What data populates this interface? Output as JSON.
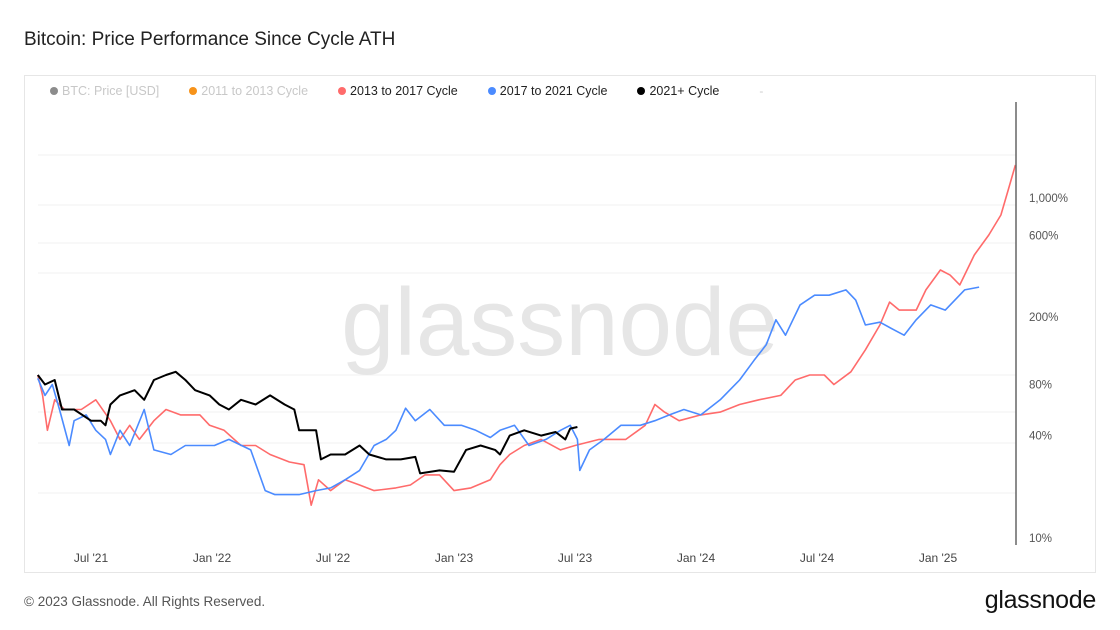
{
  "title": "Bitcoin: Price Performance Since Cycle ATH",
  "footer": "© 2023 Glassnode. All Rights Reserved.",
  "logo": "glassnode",
  "watermark": "glassnode",
  "legend": [
    {
      "label": "BTC: Price [USD]",
      "color": "#8c8c8c",
      "active": false
    },
    {
      "label": "2011 to 2013 Cycle",
      "color": "#f7931a",
      "active": false
    },
    {
      "label": "2013 to 2017 Cycle",
      "color": "#ff6b6b",
      "active": true
    },
    {
      "label": "2017 to 2021 Cycle",
      "color": "#4b8bff",
      "active": true
    },
    {
      "label": "2021+ Cycle",
      "color": "#000000",
      "active": true
    }
  ],
  "legend_more": "-",
  "chart_data": {
    "type": "line",
    "title": "Bitcoin: Price Performance Since Cycle ATH",
    "xlabel": "",
    "ylabel": "",
    "yscale": "log",
    "ylim": [
      10,
      1900
    ],
    "xlim": [
      2021.28,
      2025.32
    ],
    "x_ticks": [
      {
        "label": "Jul '21",
        "value": 2021.5
      },
      {
        "label": "Jan '22",
        "value": 2022.0
      },
      {
        "label": "Jul '22",
        "value": 2022.5
      },
      {
        "label": "Jan '23",
        "value": 2023.0
      },
      {
        "label": "Jul '23",
        "value": 2023.5
      },
      {
        "label": "Jan '24",
        "value": 2024.0
      },
      {
        "label": "Jul '24",
        "value": 2024.5
      },
      {
        "label": "Jan '25",
        "value": 2025.0
      }
    ],
    "y_ticks": [
      {
        "label": "1,000%",
        "value": 1000
      },
      {
        "label": "600%",
        "value": 600
      },
      {
        "label": "200%",
        "value": 200
      },
      {
        "label": "80%",
        "value": 80
      },
      {
        "label": "40%",
        "value": 40
      },
      {
        "label": "10%",
        "value": 10
      }
    ],
    "series": [
      {
        "name": "2013 to 2017 Cycle",
        "color": "#ff6b6b",
        "points": [
          [
            2021.28,
            91
          ],
          [
            2021.3,
            69
          ],
          [
            2021.32,
            43
          ],
          [
            2021.35,
            65
          ],
          [
            2021.39,
            57
          ],
          [
            2021.46,
            57
          ],
          [
            2021.52,
            65
          ],
          [
            2021.58,
            49
          ],
          [
            2021.62,
            38
          ],
          [
            2021.66,
            46
          ],
          [
            2021.7,
            38
          ],
          [
            2021.76,
            49
          ],
          [
            2021.81,
            57
          ],
          [
            2021.87,
            53
          ],
          [
            2021.95,
            53
          ],
          [
            2021.99,
            46
          ],
          [
            2022.05,
            43
          ],
          [
            2022.12,
            35
          ],
          [
            2022.18,
            35
          ],
          [
            2022.24,
            31
          ],
          [
            2022.32,
            28
          ],
          [
            2022.38,
            27
          ],
          [
            2022.41,
            15.6
          ],
          [
            2022.44,
            22
          ],
          [
            2022.49,
            19
          ],
          [
            2022.55,
            22
          ],
          [
            2022.61,
            20.5
          ],
          [
            2022.67,
            19
          ],
          [
            2022.76,
            19.7
          ],
          [
            2022.82,
            20.5
          ],
          [
            2022.88,
            23.5
          ],
          [
            2022.94,
            23.5
          ],
          [
            2023.0,
            19
          ],
          [
            2023.07,
            19.7
          ],
          [
            2023.15,
            22
          ],
          [
            2023.19,
            27
          ],
          [
            2023.23,
            31
          ],
          [
            2023.29,
            35
          ],
          [
            2023.36,
            38
          ],
          [
            2023.44,
            33
          ],
          [
            2023.5,
            35
          ],
          [
            2023.6,
            38
          ],
          [
            2023.71,
            38
          ],
          [
            2023.79,
            46
          ],
          [
            2023.83,
            61
          ],
          [
            2023.87,
            55
          ],
          [
            2023.93,
            49
          ],
          [
            2024.02,
            53
          ],
          [
            2024.1,
            55
          ],
          [
            2024.18,
            61
          ],
          [
            2024.26,
            65
          ],
          [
            2024.35,
            69
          ],
          [
            2024.41,
            85
          ],
          [
            2024.47,
            91
          ],
          [
            2024.53,
            91
          ],
          [
            2024.57,
            80
          ],
          [
            2024.64,
            95
          ],
          [
            2024.7,
            128
          ],
          [
            2024.76,
            179
          ],
          [
            2024.8,
            244
          ],
          [
            2024.84,
            219
          ],
          [
            2024.91,
            219
          ],
          [
            2024.95,
            288
          ],
          [
            2025.01,
            377
          ],
          [
            2025.05,
            352
          ],
          [
            2025.09,
            308
          ],
          [
            2025.15,
            462
          ],
          [
            2025.21,
            606
          ],
          [
            2025.26,
            794
          ],
          [
            2025.29,
            1114
          ],
          [
            2025.32,
            1563
          ]
        ]
      },
      {
        "name": "2017 to 2021 Cycle",
        "color": "#4b8bff",
        "points": [
          [
            2021.28,
            87
          ],
          [
            2021.31,
            69
          ],
          [
            2021.34,
            80
          ],
          [
            2021.37,
            57
          ],
          [
            2021.41,
            35
          ],
          [
            2021.43,
            49
          ],
          [
            2021.48,
            53
          ],
          [
            2021.52,
            43
          ],
          [
            2021.56,
            38
          ],
          [
            2021.58,
            31
          ],
          [
            2021.62,
            43
          ],
          [
            2021.66,
            35
          ],
          [
            2021.72,
            57
          ],
          [
            2021.76,
            33
          ],
          [
            2021.83,
            31
          ],
          [
            2021.89,
            35
          ],
          [
            2021.95,
            35
          ],
          [
            2022.01,
            35
          ],
          [
            2022.07,
            38
          ],
          [
            2022.16,
            33
          ],
          [
            2022.19,
            25
          ],
          [
            2022.22,
            19
          ],
          [
            2022.26,
            18
          ],
          [
            2022.3,
            18
          ],
          [
            2022.36,
            18
          ],
          [
            2022.43,
            19
          ],
          [
            2022.49,
            19.7
          ],
          [
            2022.55,
            22
          ],
          [
            2022.61,
            25
          ],
          [
            2022.67,
            35
          ],
          [
            2022.72,
            38
          ],
          [
            2022.76,
            43
          ],
          [
            2022.8,
            58
          ],
          [
            2022.84,
            49
          ],
          [
            2022.9,
            57
          ],
          [
            2022.96,
            46
          ],
          [
            2023.03,
            46
          ],
          [
            2023.09,
            43
          ],
          [
            2023.15,
            39
          ],
          [
            2023.19,
            43
          ],
          [
            2023.25,
            46
          ],
          [
            2023.31,
            35
          ],
          [
            2023.38,
            38
          ],
          [
            2023.44,
            43
          ],
          [
            2023.48,
            46
          ],
          [
            2023.51,
            38
          ],
          [
            2023.52,
            25
          ],
          [
            2023.56,
            33
          ],
          [
            2023.62,
            38
          ],
          [
            2023.69,
            46
          ],
          [
            2023.77,
            46
          ],
          [
            2023.83,
            49
          ],
          [
            2023.89,
            53
          ],
          [
            2023.95,
            57
          ],
          [
            2024.02,
            53
          ],
          [
            2024.1,
            65
          ],
          [
            2024.18,
            85
          ],
          [
            2024.24,
            111
          ],
          [
            2024.29,
            137
          ],
          [
            2024.33,
            192
          ],
          [
            2024.37,
            156
          ],
          [
            2024.43,
            235
          ],
          [
            2024.49,
            268
          ],
          [
            2024.55,
            268
          ],
          [
            2024.62,
            288
          ],
          [
            2024.66,
            251
          ],
          [
            2024.7,
            179
          ],
          [
            2024.76,
            186
          ],
          [
            2024.82,
            167
          ],
          [
            2024.86,
            156
          ],
          [
            2024.91,
            192
          ],
          [
            2024.97,
            235
          ],
          [
            2025.03,
            219
          ],
          [
            2025.07,
            251
          ],
          [
            2025.11,
            288
          ],
          [
            2025.17,
            299
          ]
        ]
      },
      {
        "name": "2021+ Cycle",
        "color": "#000000",
        "points": [
          [
            2021.28,
            91
          ],
          [
            2021.31,
            80
          ],
          [
            2021.35,
            85
          ],
          [
            2021.38,
            57
          ],
          [
            2021.43,
            57
          ],
          [
            2021.5,
            49
          ],
          [
            2021.54,
            49
          ],
          [
            2021.56,
            46
          ],
          [
            2021.58,
            61
          ],
          [
            2021.62,
            69
          ],
          [
            2021.68,
            74
          ],
          [
            2021.72,
            65
          ],
          [
            2021.76,
            85
          ],
          [
            2021.81,
            91
          ],
          [
            2021.85,
            95
          ],
          [
            2021.89,
            85
          ],
          [
            2021.93,
            74
          ],
          [
            2021.99,
            69
          ],
          [
            2022.03,
            61
          ],
          [
            2022.07,
            57
          ],
          [
            2022.12,
            65
          ],
          [
            2022.18,
            61
          ],
          [
            2022.24,
            69
          ],
          [
            2022.3,
            61
          ],
          [
            2022.34,
            57
          ],
          [
            2022.36,
            43
          ],
          [
            2022.43,
            43
          ],
          [
            2022.45,
            29
          ],
          [
            2022.49,
            31
          ],
          [
            2022.55,
            31
          ],
          [
            2022.61,
            35
          ],
          [
            2022.65,
            31
          ],
          [
            2022.72,
            29
          ],
          [
            2022.78,
            29
          ],
          [
            2022.84,
            30
          ],
          [
            2022.86,
            24
          ],
          [
            2022.94,
            25
          ],
          [
            2023.0,
            24.5
          ],
          [
            2023.05,
            33
          ],
          [
            2023.11,
            35
          ],
          [
            2023.17,
            33
          ],
          [
            2023.19,
            31
          ],
          [
            2023.23,
            40
          ],
          [
            2023.29,
            43
          ],
          [
            2023.36,
            40
          ],
          [
            2023.42,
            42
          ],
          [
            2023.46,
            38
          ],
          [
            2023.48,
            44
          ],
          [
            2023.51,
            45
          ]
        ]
      }
    ],
    "grid": true,
    "legend_position": "top-left"
  }
}
